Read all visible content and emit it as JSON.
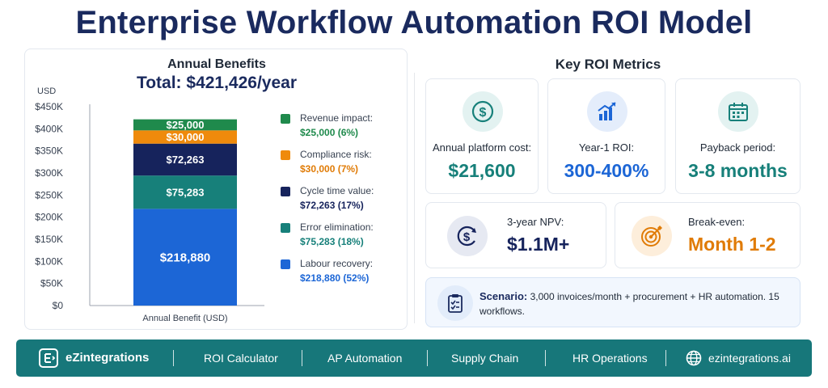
{
  "page": {
    "title": "Enterprise Workflow Automation ROI Model"
  },
  "chart_data": {
    "type": "bar",
    "title": "Annual Benefits",
    "subtitle": "Total: $421,426/year",
    "ylabel": "USD",
    "xlabel": "Annual Benefit (USD)",
    "ylim": [
      0,
      450000
    ],
    "yticks": [
      0,
      50000,
      100000,
      150000,
      200000,
      250000,
      300000,
      350000,
      400000,
      450000
    ],
    "ytick_labels": [
      "$0",
      "$50K",
      "$100K",
      "$150K",
      "$200K",
      "$250K",
      "$300K",
      "$350K",
      "$400K",
      "$450K"
    ],
    "stacked": true,
    "grid": false,
    "legend_placement": "right",
    "series": [
      {
        "name": "Labour recovery:",
        "value": 218880,
        "label": "$218,880",
        "legend_value": "$218,880 (52%)",
        "color": "#1c66d6",
        "text_color": "#1c66d6"
      },
      {
        "name": "Error elimination:",
        "value": 75283,
        "label": "$75,283",
        "legend_value": "$75,283 (18%)",
        "color": "#17807a",
        "text_color": "#17807a"
      },
      {
        "name": "Cycle time value:",
        "value": 72263,
        "label": "$72,263",
        "legend_value": "$72,263 (17%)",
        "color": "#16235c",
        "text_color": "#16235c"
      },
      {
        "name": "Compliance risk:",
        "value": 30000,
        "label": "$30,000",
        "legend_value": "$30,000 (7%)",
        "color": "#ef8a0c",
        "text_color": "#e07b06"
      },
      {
        "name": "Revenue impact:",
        "value": 25000,
        "label": "$25,000",
        "legend_value": "$25,000 (6%)",
        "color": "#1f8a4c",
        "text_color": "#1f8a4c"
      }
    ]
  },
  "metrics": {
    "title": "Key ROI Metrics",
    "platform_cost": {
      "label": "Annual platform cost:",
      "value": "$21,600",
      "color": "#17807a",
      "icon": "dollar-circle-icon"
    },
    "roi": {
      "label": "Year-1 ROI:",
      "value": "300-400%",
      "color": "#1c66d6",
      "icon": "bar-chart-up-icon"
    },
    "payback": {
      "label": "Payback period:",
      "value": "3-8 months",
      "color": "#17807a",
      "icon": "calendar-icon"
    },
    "npv": {
      "label": "3-year NPV:",
      "value": "$1.1M+",
      "color": "#16235c",
      "icon": "currency-cycle-icon"
    },
    "breakeven": {
      "label": "Break-even:",
      "value": "Month 1-2",
      "color": "#e07b06",
      "icon": "target-icon"
    }
  },
  "scenario": {
    "label": "Scenario:",
    "text": "3,000 invoices/month + procurement + HR automation. 15 workflows.",
    "icon": "clipboard-check-icon"
  },
  "footer": {
    "brand": "eZintegrations",
    "links": [
      "ROI Calculator",
      "AP Automation",
      "Supply Chain",
      "HR Operations"
    ],
    "website": "ezintegrations.ai",
    "background": "#17777a"
  }
}
